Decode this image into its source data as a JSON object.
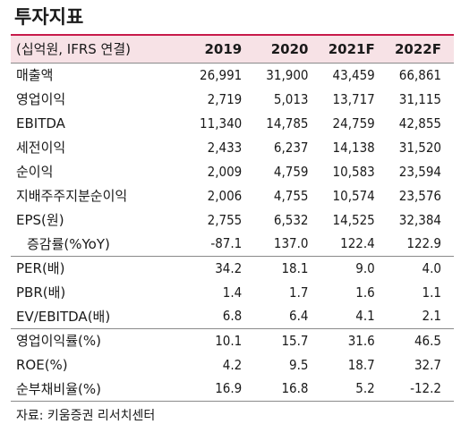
{
  "title": "투자지표",
  "header": {
    "unit_label": "(십억원, IFRS 연결)",
    "years": [
      "2019",
      "2020",
      "2021F",
      "2022F"
    ]
  },
  "rows": [
    {
      "label": "매출액",
      "values": [
        "26,991",
        "31,900",
        "43,459",
        "66,861"
      ]
    },
    {
      "label": "영업이익",
      "values": [
        "2,719",
        "5,013",
        "13,717",
        "31,115"
      ]
    },
    {
      "label": "EBITDA",
      "values": [
        "11,340",
        "14,785",
        "24,759",
        "42,855"
      ]
    },
    {
      "label": "세전이익",
      "values": [
        "2,433",
        "6,237",
        "14,138",
        "31,520"
      ]
    },
    {
      "label": "순이익",
      "values": [
        "2,009",
        "4,759",
        "10,583",
        "23,594"
      ]
    },
    {
      "label": "지배주주지분순이익",
      "values": [
        "2,006",
        "4,755",
        "10,574",
        "23,576"
      ]
    },
    {
      "label": "EPS(원)",
      "values": [
        "2,755",
        "6,532",
        "14,525",
        "32,384"
      ]
    },
    {
      "label": "증감률(%YoY)",
      "values": [
        "-87.1",
        "137.0",
        "122.4",
        "122.9"
      ]
    },
    {
      "label": "PER(배)",
      "values": [
        "34.2",
        "18.1",
        "9.0",
        "4.0"
      ]
    },
    {
      "label": "PBR(배)",
      "values": [
        "1.4",
        "1.7",
        "1.6",
        "1.1"
      ]
    },
    {
      "label": "EV/EBITDA(배)",
      "values": [
        "6.8",
        "6.4",
        "4.1",
        "2.1"
      ]
    },
    {
      "label": "영업이익률(%)",
      "values": [
        "10.1",
        "15.7",
        "31.6",
        "46.5"
      ]
    },
    {
      "label": "ROE(%)",
      "values": [
        "4.2",
        "9.5",
        "18.7",
        "32.7"
      ]
    },
    {
      "label": "순부채비율(%)",
      "values": [
        "16.9",
        "16.8",
        "5.2",
        "-12.2"
      ]
    }
  ],
  "source": "자료: 키움증권 리서치센터"
}
